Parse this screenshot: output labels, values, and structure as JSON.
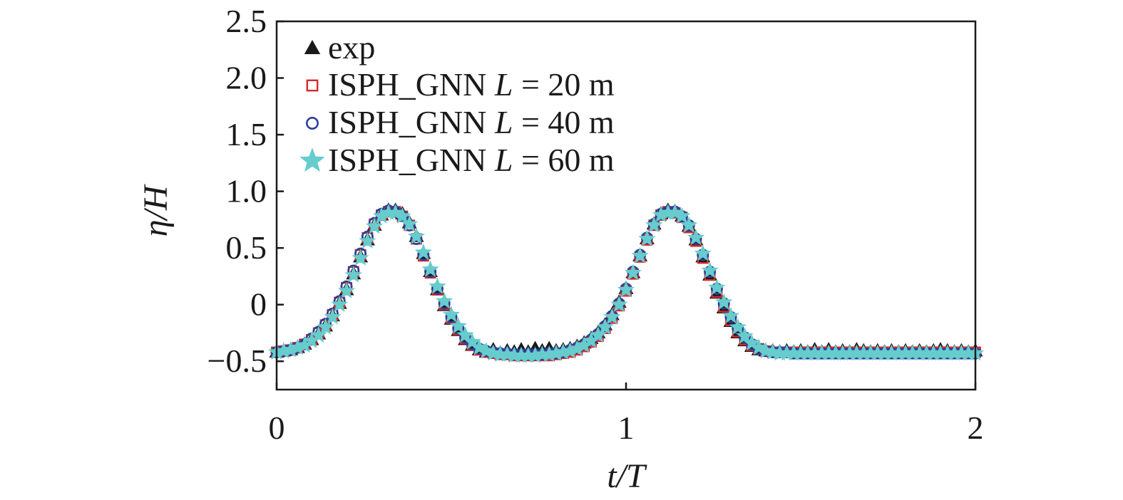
{
  "chart_data": {
    "type": "scatter",
    "title": "",
    "xlabel": "t/T",
    "ylabel": "η/H",
    "xlim": [
      0,
      2
    ],
    "ylim": [
      -0.75,
      2.5
    ],
    "xticks": [
      0,
      1,
      2
    ],
    "xtick_labels": [
      "0",
      "1",
      "2"
    ],
    "yticks": [
      -0.5,
      0,
      0.5,
      1.0,
      1.5,
      2.0,
      2.5
    ],
    "ytick_labels": [
      "−0.5",
      "0",
      "0.5",
      "1.0",
      "1.5",
      "2.0",
      "2.5"
    ],
    "grid": false,
    "legend_position": "top-left",
    "colors": {
      "exp": "#1a1a1a",
      "l20": "#d42a2a",
      "l40": "#2d3f9e",
      "l60": "#66cccc"
    },
    "series": [
      {
        "name": "exp",
        "key": "exp",
        "marker": "triangle",
        "label_prefix": "exp",
        "label_var": "",
        "label_suffix": "",
        "x": [
          0.0,
          0.02,
          0.04,
          0.06,
          0.08,
          0.1,
          0.12,
          0.14,
          0.16,
          0.18,
          0.2,
          0.22,
          0.24,
          0.26,
          0.28,
          0.3,
          0.32,
          0.34,
          0.36,
          0.38,
          0.4,
          0.42,
          0.44,
          0.46,
          0.48,
          0.5,
          0.52,
          0.54,
          0.56,
          0.58,
          0.6,
          0.62,
          0.64,
          0.66,
          0.68,
          0.7,
          0.72,
          0.74,
          0.76,
          0.78,
          0.8,
          0.82,
          0.84,
          0.86,
          0.88,
          0.9,
          0.92,
          0.94,
          0.96,
          0.98,
          1.0,
          1.02,
          1.04,
          1.06,
          1.08,
          1.1,
          1.12,
          1.14,
          1.16,
          1.18,
          1.2,
          1.22,
          1.24,
          1.26,
          1.28,
          1.3,
          1.32,
          1.34,
          1.36,
          1.38,
          1.4,
          1.42,
          1.44,
          1.46,
          1.48,
          1.5,
          1.52,
          1.54,
          1.56,
          1.58,
          1.6,
          1.62,
          1.64,
          1.66,
          1.68,
          1.7,
          1.72,
          1.74,
          1.76,
          1.78,
          1.8,
          1.82,
          1.84,
          1.86,
          1.88,
          1.9,
          1.92,
          1.94,
          1.96,
          1.98,
          2.0
        ],
        "y": [
          -0.42,
          -0.41,
          -0.4,
          -0.38,
          -0.35,
          -0.31,
          -0.26,
          -0.19,
          -0.1,
          0.01,
          0.13,
          0.27,
          0.42,
          0.57,
          0.7,
          0.79,
          0.83,
          0.83,
          0.8,
          0.72,
          0.6,
          0.45,
          0.29,
          0.13,
          -0.01,
          -0.13,
          -0.23,
          -0.31,
          -0.36,
          -0.4,
          -0.42,
          -0.4,
          -0.43,
          -0.41,
          -0.42,
          -0.4,
          -0.42,
          -0.39,
          -0.41,
          -0.39,
          -0.41,
          -0.4,
          -0.39,
          -0.37,
          -0.34,
          -0.3,
          -0.25,
          -0.18,
          -0.09,
          0.02,
          0.14,
          0.28,
          0.43,
          0.58,
          0.71,
          0.8,
          0.83,
          0.82,
          0.78,
          0.69,
          0.57,
          0.42,
          0.26,
          0.1,
          -0.03,
          -0.15,
          -0.25,
          -0.32,
          -0.37,
          -0.4,
          -0.41,
          -0.41,
          -0.42,
          -0.41,
          -0.42,
          -0.41,
          -0.42,
          -0.4,
          -0.42,
          -0.4,
          -0.42,
          -0.41,
          -0.42,
          -0.4,
          -0.41,
          -0.42,
          -0.41,
          -0.42,
          -0.41,
          -0.42,
          -0.41,
          -0.42,
          -0.41,
          -0.42,
          -0.41,
          -0.4,
          -0.41,
          -0.42,
          -0.41,
          -0.42,
          -0.41
        ]
      },
      {
        "name": "ISPH_GNN L = 20 m",
        "key": "l20",
        "marker": "square",
        "label_prefix": "ISPH_GNN ",
        "label_var": "L",
        "label_suffix": " = 20 m",
        "x": [
          0.0,
          0.02,
          0.04,
          0.06,
          0.08,
          0.1,
          0.12,
          0.14,
          0.16,
          0.18,
          0.2,
          0.22,
          0.24,
          0.26,
          0.28,
          0.3,
          0.32,
          0.34,
          0.36,
          0.38,
          0.4,
          0.42,
          0.44,
          0.46,
          0.48,
          0.5,
          0.52,
          0.54,
          0.56,
          0.58,
          0.6,
          0.62,
          0.64,
          0.66,
          0.68,
          0.7,
          0.72,
          0.74,
          0.76,
          0.78,
          0.8,
          0.82,
          0.84,
          0.86,
          0.88,
          0.9,
          0.92,
          0.94,
          0.96,
          0.98,
          1.0,
          1.02,
          1.04,
          1.06,
          1.08,
          1.1,
          1.12,
          1.14,
          1.16,
          1.18,
          1.2,
          1.22,
          1.24,
          1.26,
          1.28,
          1.3,
          1.32,
          1.34,
          1.36,
          1.38,
          1.4,
          1.42,
          1.44,
          1.46,
          1.48,
          1.5,
          1.52,
          1.54,
          1.56,
          1.58,
          1.6,
          1.62,
          1.64,
          1.66,
          1.68,
          1.7,
          1.72,
          1.74,
          1.76,
          1.78,
          1.8,
          1.82,
          1.84,
          1.86,
          1.88,
          1.9,
          1.92,
          1.94,
          1.96,
          1.98,
          2.0
        ],
        "y": [
          -0.42,
          -0.41,
          -0.4,
          -0.38,
          -0.35,
          -0.31,
          -0.25,
          -0.18,
          -0.09,
          0.02,
          0.15,
          0.29,
          0.44,
          0.59,
          0.71,
          0.79,
          0.82,
          0.82,
          0.78,
          0.7,
          0.58,
          0.43,
          0.28,
          0.13,
          0.0,
          -0.12,
          -0.22,
          -0.3,
          -0.36,
          -0.4,
          -0.42,
          -0.43,
          -0.44,
          -0.44,
          -0.45,
          -0.45,
          -0.45,
          -0.45,
          -0.45,
          -0.45,
          -0.44,
          -0.43,
          -0.42,
          -0.4,
          -0.37,
          -0.33,
          -0.28,
          -0.21,
          -0.12,
          -0.01,
          0.12,
          0.27,
          0.42,
          0.57,
          0.7,
          0.79,
          0.82,
          0.81,
          0.77,
          0.68,
          0.56,
          0.41,
          0.26,
          0.11,
          -0.02,
          -0.14,
          -0.24,
          -0.31,
          -0.36,
          -0.39,
          -0.41,
          -0.42,
          -0.42,
          -0.42,
          -0.42,
          -0.42,
          -0.42,
          -0.42,
          -0.42,
          -0.42,
          -0.42,
          -0.42,
          -0.42,
          -0.42,
          -0.42,
          -0.42,
          -0.42,
          -0.42,
          -0.42,
          -0.42,
          -0.42,
          -0.42,
          -0.42,
          -0.42,
          -0.42,
          -0.42,
          -0.42,
          -0.42,
          -0.42,
          -0.42,
          -0.42
        ]
      },
      {
        "name": "ISPH_GNN L = 40 m",
        "key": "l40",
        "marker": "circle",
        "label_prefix": "ISPH_GNN ",
        "label_var": "L",
        "label_suffix": " = 40 m",
        "x": [
          0.0,
          0.02,
          0.04,
          0.06,
          0.08,
          0.1,
          0.12,
          0.14,
          0.16,
          0.18,
          0.2,
          0.22,
          0.24,
          0.26,
          0.28,
          0.3,
          0.32,
          0.34,
          0.36,
          0.38,
          0.4,
          0.42,
          0.44,
          0.46,
          0.48,
          0.5,
          0.52,
          0.54,
          0.56,
          0.58,
          0.6,
          0.62,
          0.64,
          0.66,
          0.68,
          0.7,
          0.72,
          0.74,
          0.76,
          0.78,
          0.8,
          0.82,
          0.84,
          0.86,
          0.88,
          0.9,
          0.92,
          0.94,
          0.96,
          0.98,
          1.0,
          1.02,
          1.04,
          1.06,
          1.08,
          1.1,
          1.12,
          1.14,
          1.16,
          1.18,
          1.2,
          1.22,
          1.24,
          1.26,
          1.28,
          1.3,
          1.32,
          1.34,
          1.36,
          1.38,
          1.4,
          1.42,
          1.44,
          1.46,
          1.48,
          1.5,
          1.52,
          1.54,
          1.56,
          1.58,
          1.6,
          1.62,
          1.64,
          1.66,
          1.68,
          1.7,
          1.72,
          1.74,
          1.76,
          1.78,
          1.8,
          1.82,
          1.84,
          1.86,
          1.88,
          1.9,
          1.92,
          1.94,
          1.96,
          1.98,
          2.0
        ],
        "y": [
          -0.42,
          -0.41,
          -0.4,
          -0.38,
          -0.35,
          -0.3,
          -0.24,
          -0.17,
          -0.08,
          0.03,
          0.16,
          0.3,
          0.45,
          0.6,
          0.72,
          0.8,
          0.83,
          0.82,
          0.78,
          0.7,
          0.58,
          0.44,
          0.29,
          0.14,
          0.01,
          -0.11,
          -0.21,
          -0.29,
          -0.35,
          -0.39,
          -0.41,
          -0.42,
          -0.43,
          -0.43,
          -0.44,
          -0.44,
          -0.44,
          -0.44,
          -0.44,
          -0.43,
          -0.43,
          -0.42,
          -0.4,
          -0.38,
          -0.35,
          -0.31,
          -0.26,
          -0.19,
          -0.1,
          0.01,
          0.14,
          0.29,
          0.44,
          0.59,
          0.71,
          0.8,
          0.82,
          0.82,
          0.78,
          0.7,
          0.58,
          0.44,
          0.29,
          0.14,
          0.01,
          -0.11,
          -0.21,
          -0.29,
          -0.35,
          -0.39,
          -0.41,
          -0.42,
          -0.42,
          -0.42,
          -0.43,
          -0.43,
          -0.43,
          -0.43,
          -0.43,
          -0.43,
          -0.43,
          -0.43,
          -0.43,
          -0.43,
          -0.43,
          -0.43,
          -0.43,
          -0.43,
          -0.43,
          -0.43,
          -0.43,
          -0.43,
          -0.43,
          -0.43,
          -0.43,
          -0.43,
          -0.43,
          -0.43,
          -0.43,
          -0.43,
          -0.43
        ]
      },
      {
        "name": "ISPH_GNN L = 60 m",
        "key": "l60",
        "marker": "star",
        "label_prefix": "ISPH_GNN ",
        "label_var": "L",
        "label_suffix": " = 60 m",
        "x": [
          0.0,
          0.02,
          0.04,
          0.06,
          0.08,
          0.1,
          0.12,
          0.14,
          0.16,
          0.18,
          0.2,
          0.22,
          0.24,
          0.26,
          0.28,
          0.3,
          0.32,
          0.34,
          0.36,
          0.38,
          0.4,
          0.42,
          0.44,
          0.46,
          0.48,
          0.5,
          0.52,
          0.54,
          0.56,
          0.58,
          0.6,
          0.62,
          0.64,
          0.66,
          0.68,
          0.7,
          0.72,
          0.74,
          0.76,
          0.78,
          0.8,
          0.82,
          0.84,
          0.86,
          0.88,
          0.9,
          0.92,
          0.94,
          0.96,
          0.98,
          1.0,
          1.02,
          1.04,
          1.06,
          1.08,
          1.1,
          1.12,
          1.14,
          1.16,
          1.18,
          1.2,
          1.22,
          1.24,
          1.26,
          1.28,
          1.3,
          1.32,
          1.34,
          1.36,
          1.38,
          1.4,
          1.42,
          1.44,
          1.46,
          1.48,
          1.5,
          1.52,
          1.54,
          1.56,
          1.58,
          1.6,
          1.62,
          1.64,
          1.66,
          1.68,
          1.7,
          1.72,
          1.74,
          1.76,
          1.78,
          1.8,
          1.82,
          1.84,
          1.86,
          1.88,
          1.9,
          1.92,
          1.94,
          1.96,
          1.98,
          2.0
        ],
        "y": [
          -0.42,
          -0.41,
          -0.4,
          -0.38,
          -0.36,
          -0.32,
          -0.27,
          -0.2,
          -0.11,
          0.0,
          0.12,
          0.26,
          0.41,
          0.56,
          0.69,
          0.78,
          0.81,
          0.81,
          0.78,
          0.71,
          0.6,
          0.46,
          0.31,
          0.16,
          0.03,
          -0.09,
          -0.19,
          -0.27,
          -0.33,
          -0.38,
          -0.41,
          -0.43,
          -0.44,
          -0.44,
          -0.45,
          -0.45,
          -0.45,
          -0.45,
          -0.44,
          -0.44,
          -0.43,
          -0.42,
          -0.41,
          -0.39,
          -0.36,
          -0.32,
          -0.27,
          -0.2,
          -0.11,
          0.0,
          0.13,
          0.28,
          0.43,
          0.58,
          0.7,
          0.79,
          0.81,
          0.81,
          0.78,
          0.7,
          0.59,
          0.45,
          0.3,
          0.15,
          0.02,
          -0.1,
          -0.2,
          -0.28,
          -0.34,
          -0.38,
          -0.41,
          -0.42,
          -0.43,
          -0.43,
          -0.43,
          -0.43,
          -0.43,
          -0.43,
          -0.43,
          -0.43,
          -0.43,
          -0.43,
          -0.43,
          -0.43,
          -0.43,
          -0.43,
          -0.43,
          -0.43,
          -0.43,
          -0.43,
          -0.43,
          -0.43,
          -0.43,
          -0.43,
          -0.43,
          -0.43,
          -0.43,
          -0.43,
          -0.43,
          -0.43,
          -0.43
        ]
      }
    ]
  }
}
